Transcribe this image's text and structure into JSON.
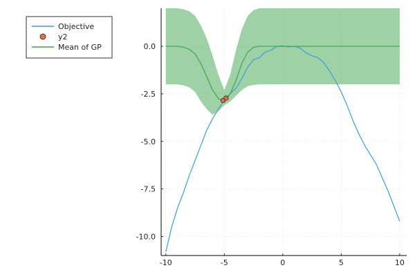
{
  "chart_data": {
    "type": "line",
    "title": "",
    "xlabel": "",
    "ylabel": "",
    "xlim": [
      -10.4,
      10.6
    ],
    "ylim": [
      -11.0,
      2.0
    ],
    "grid": true,
    "legend_position": "top-left (outside plot area)",
    "x_ticks": [
      {
        "value": -10,
        "label": "-10"
      },
      {
        "value": -5,
        "label": "-5"
      },
      {
        "value": 0,
        "label": "0"
      },
      {
        "value": 5,
        "label": "5"
      },
      {
        "value": 10,
        "label": "10"
      }
    ],
    "y_ticks": [
      {
        "value": 0.0,
        "label": "0.0"
      },
      {
        "value": -2.5,
        "label": "-2.5"
      },
      {
        "value": -5.0,
        "label": "-5.0"
      },
      {
        "value": -7.5,
        "label": "-7.5"
      },
      {
        "value": -10.0,
        "label": "-10.0"
      }
    ],
    "series": [
      {
        "name": "Objective",
        "kind": "line",
        "color": "#3a9fd5",
        "x": [
          -10.0,
          -9.5,
          -9.0,
          -8.5,
          -8.0,
          -7.5,
          -7.0,
          -6.5,
          -6.0,
          -5.5,
          -5.0,
          -4.5,
          -4.0,
          -3.5,
          -3.0,
          -2.5,
          -2.0,
          -1.5,
          -1.0,
          -0.5,
          0.0,
          0.5,
          1.0,
          1.5,
          2.0,
          2.5,
          3.0,
          3.5,
          4.0,
          4.5,
          5.0,
          5.5,
          6.0,
          6.5,
          7.0,
          7.5,
          8.0,
          8.5,
          9.0,
          9.5,
          10.0
        ],
        "y": [
          -10.8,
          -9.5,
          -8.5,
          -7.7,
          -6.8,
          -6.0,
          -5.2,
          -4.4,
          -3.8,
          -3.3,
          -2.8,
          -2.5,
          -2.2,
          -1.7,
          -1.1,
          -0.7,
          -0.6,
          -0.3,
          -0.2,
          0.0,
          0.02,
          -0.03,
          0.0,
          -0.1,
          -0.35,
          -0.5,
          -0.6,
          -0.85,
          -1.3,
          -1.8,
          -2.4,
          -3.1,
          -3.9,
          -4.6,
          -5.2,
          -5.7,
          -6.2,
          -6.9,
          -7.6,
          -8.4,
          -9.2
        ]
      },
      {
        "name": "y2",
        "kind": "scatter",
        "color": "#e26f46",
        "x": [
          -5.1,
          -4.85
        ],
        "y": [
          -2.85,
          -2.72
        ]
      },
      {
        "name": "Mean of GP",
        "kind": "line_with_band",
        "color": "#3da44d",
        "band_color": "#3da44d",
        "band_opacity": 0.5,
        "x": [
          -10.0,
          -9.5,
          -9.0,
          -8.5,
          -8.0,
          -7.5,
          -7.0,
          -6.5,
          -6.0,
          -5.5,
          -5.0,
          -4.5,
          -4.0,
          -3.5,
          -3.0,
          -2.5,
          -2.0,
          -1.5,
          -1.0,
          0.0,
          1.0,
          2.0,
          4.0,
          6.0,
          8.0,
          10.0
        ],
        "y": [
          0.0,
          0.0,
          0.0,
          -0.05,
          -0.15,
          -0.4,
          -0.9,
          -1.6,
          -2.3,
          -2.75,
          -2.9,
          -2.5,
          -1.8,
          -0.9,
          -0.3,
          -0.05,
          0.0,
          0.0,
          0.0,
          0.0,
          0.0,
          0.0,
          0.0,
          0.0,
          0.0,
          0.0
        ],
        "band_upper": [
          2.0,
          2.0,
          2.0,
          1.95,
          1.85,
          1.6,
          1.1,
          0.4,
          -0.5,
          -1.5,
          -2.3,
          -1.5,
          -0.2,
          0.9,
          1.6,
          1.9,
          2.0,
          2.0,
          2.0,
          2.0,
          2.0,
          2.0,
          2.0,
          2.0,
          2.0,
          2.0
        ],
        "band_lower": [
          -2.0,
          -2.0,
          -2.0,
          -2.05,
          -2.15,
          -2.4,
          -2.9,
          -3.3,
          -3.6,
          -3.4,
          -3.1,
          -2.9,
          -2.6,
          -2.3,
          -2.1,
          -2.03,
          -2.0,
          -2.0,
          -2.0,
          -2.0,
          -2.0,
          -2.0,
          -2.0,
          -2.0,
          -2.0,
          -2.0
        ]
      }
    ]
  }
}
